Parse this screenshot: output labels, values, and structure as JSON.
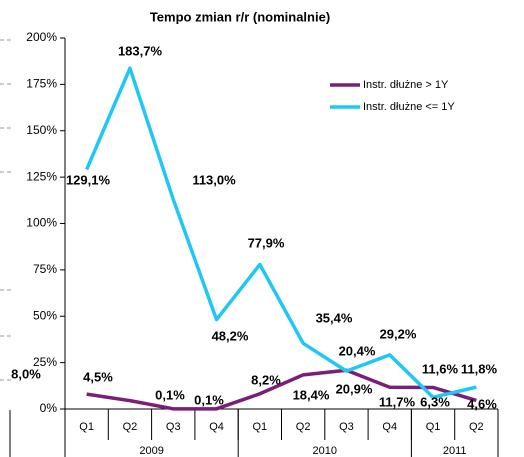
{
  "chart_data": {
    "type": "line",
    "title": "Tempo zmian r/r (nominalnie)",
    "categories": [
      "Q1",
      "Q2",
      "Q3",
      "Q4",
      "Q1",
      "Q2",
      "Q3",
      "Q4",
      "Q1",
      "Q2"
    ],
    "x_groups": [
      {
        "label": "2009",
        "span": 4
      },
      {
        "label": "2010",
        "span": 4
      },
      {
        "label": "2011",
        "span": 2
      }
    ],
    "series": [
      {
        "name": "Instr. dłużne > 1Y",
        "color": "#7a1f78",
        "values": [
          8.0,
          4.5,
          0.1,
          0.1,
          8.2,
          18.4,
          20.9,
          11.7,
          11.6,
          4.6
        ],
        "value_labels": [
          "8,0%",
          "4,5%",
          "0,1%",
          "0,1%",
          "8,2%",
          "18,4%",
          "20,9%",
          "11,7%",
          "11,6%",
          "4,6%"
        ]
      },
      {
        "name": "Instr. dłużne <= 1Y",
        "color": "#1ec8f5",
        "values": [
          129.1,
          183.7,
          113.0,
          48.2,
          77.9,
          35.4,
          20.4,
          29.2,
          6.3,
          11.8
        ],
        "value_labels": [
          "129,1%",
          "183,7%",
          "113,0%",
          "48,2%",
          "77,9%",
          "35,4%",
          "20,4%",
          "29,2%",
          "6,3%",
          "11,8%"
        ]
      }
    ],
    "ylim": [
      0,
      200
    ],
    "yticks": [
      {
        "value": 0,
        "label": "0%"
      },
      {
        "value": 25,
        "label": "25%"
      },
      {
        "value": 50,
        "label": "50%"
      },
      {
        "value": 75,
        "label": "75%"
      },
      {
        "value": 100,
        "label": "100%"
      },
      {
        "value": 125,
        "label": "125%"
      },
      {
        "value": 150,
        "label": "150%"
      },
      {
        "value": 175,
        "label": "175%"
      },
      {
        "value": 200,
        "label": "200%"
      }
    ],
    "legend": "upper right",
    "grid": false
  }
}
